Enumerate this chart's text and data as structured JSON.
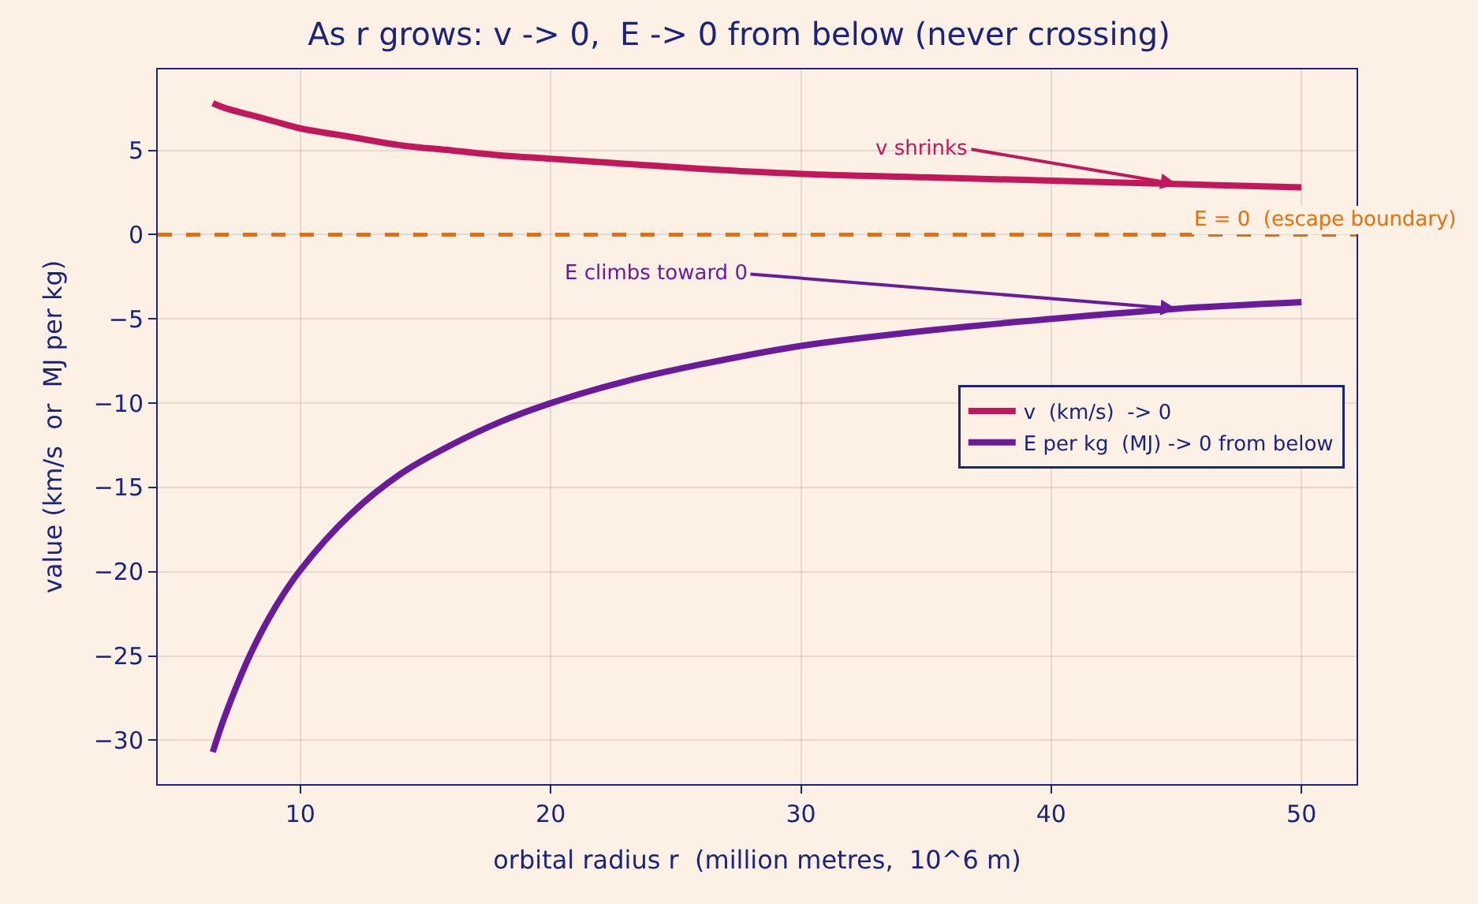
{
  "chart_data": {
    "type": "line",
    "title": "As r grows: v -> 0,  E -> 0 from below (never crossing)",
    "xlabel": "orbital radius r  (million metres,  10^6 m)",
    "ylabel": "value (km/s  or  MJ per kg)",
    "x": [
      6.5,
      7,
      8,
      9,
      10,
      12,
      14,
      16,
      18,
      20,
      23,
      26,
      30,
      35,
      40,
      45,
      50
    ],
    "series": [
      {
        "name": "v  (km/s)  -> 0",
        "color": "#c2185b",
        "values": [
          7.8,
          7.5,
          7.1,
          6.7,
          6.3,
          5.8,
          5.3,
          5.0,
          4.7,
          4.5,
          4.2,
          3.9,
          3.6,
          3.4,
          3.2,
          3.0,
          2.8
        ]
      },
      {
        "name": "E per kg  (MJ) -> 0 from below",
        "color": "#6a1b9a",
        "values": [
          -30.7,
          -28.5,
          -24.9,
          -22.1,
          -19.9,
          -16.6,
          -14.2,
          -12.5,
          -11.1,
          -10.0,
          -8.7,
          -7.7,
          -6.6,
          -5.7,
          -5.0,
          -4.4,
          -4.0
        ]
      }
    ],
    "xlim": [
      4.3,
      52.2
    ],
    "ylim": [
      -32.6,
      9.8
    ],
    "xticks": [
      10,
      20,
      30,
      40,
      50
    ],
    "yticks": [
      -30,
      -25,
      -20,
      -15,
      -10,
      -5,
      0,
      5
    ],
    "ref_lines": [
      {
        "axis": "y",
        "value": 0,
        "label": "E = 0  (escape boundary)",
        "color": "#ef6c00",
        "line_style": "dashed"
      }
    ],
    "annotations": [
      {
        "text": "v shrinks",
        "x": 45,
        "y": 3.0
      },
      {
        "text": "E climbs toward 0",
        "x": 45,
        "y": -4.4
      }
    ],
    "grid": true,
    "legend": "right",
    "marker": "none",
    "line_style": "solid"
  }
}
